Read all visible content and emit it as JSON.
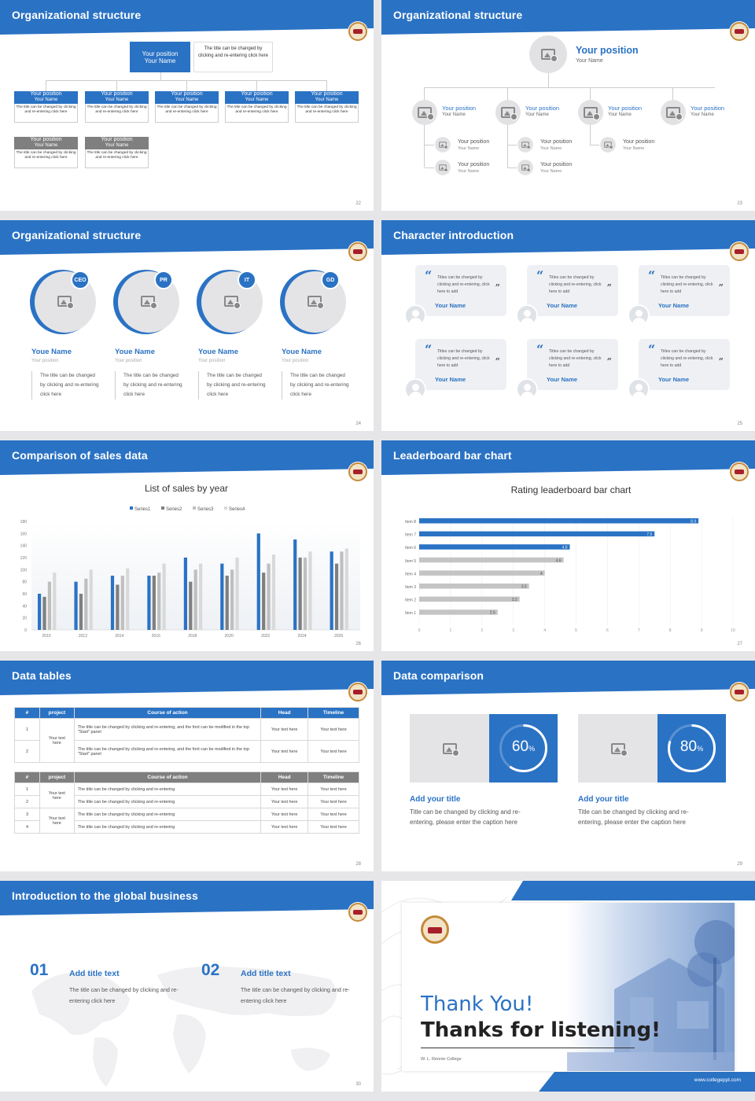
{
  "slides": {
    "s22": {
      "title": "Organizational structure",
      "page": "22",
      "top_box": {
        "position": "Your position",
        "name": "Your Name",
        "note": "The title can be changed by clicking and re-entering click here"
      },
      "row1": [
        {
          "position": "Your position",
          "name": "Your Name",
          "note": "The title can be changed by clicking and re-entering click here"
        },
        {
          "position": "Your position",
          "name": "Your Name",
          "note": "The title can be changed by clicking and re-entering click here"
        },
        {
          "position": "Your position",
          "name": "Your Name",
          "note": "The title can be changed by clicking and re-entering click here"
        },
        {
          "position": "Your position",
          "name": "Your Name",
          "note": "The title can be changed by clicking and re-entering click here"
        },
        {
          "position": "Your position",
          "name": "Your Name",
          "note": "The title can be changed by clicking and re-entering click here"
        }
      ],
      "row2": [
        {
          "position": "Your position",
          "name": "Your Name",
          "note": "The title can be changed by clicking and re-entering click here"
        },
        {
          "position": "Your position",
          "name": "Your Name",
          "note": "The title can be changed by clicking and re-entering click here"
        }
      ]
    },
    "s23": {
      "title": "Organizational structure",
      "page": "23",
      "top": {
        "position": "Your position",
        "name": "Your Name"
      },
      "level2": [
        {
          "position": "Your position",
          "name": "Your Name"
        },
        {
          "position": "Your position",
          "name": "Your Name"
        },
        {
          "position": "Your position",
          "name": "Your Name"
        },
        {
          "position": "Your position",
          "name": "Your Name"
        }
      ],
      "level3": [
        {
          "position": "Your position",
          "name": "Your Name"
        },
        {
          "position": "Your position",
          "name": "Your Name"
        },
        {
          "position": "Your position",
          "name": "Your Name"
        },
        {
          "position": "Your position",
          "name": "Your Name"
        },
        {
          "position": "Your position",
          "name": "Your Name"
        }
      ]
    },
    "s24": {
      "title": "Organizational structure",
      "page": "24",
      "people": [
        {
          "badge": "CEO",
          "name": "Youe Name",
          "position": "Your position",
          "desc": "The title can be changed by clicking and re-entering click here"
        },
        {
          "badge": "PR",
          "name": "Youe Name",
          "position": "Your position",
          "desc": "The title can be changed by clicking and re-entering click here"
        },
        {
          "badge": "IT",
          "name": "Youe Name",
          "position": "Your position",
          "desc": "The title can be changed by clicking and re-entering click here"
        },
        {
          "badge": "GD",
          "name": "Youe Name",
          "position": "Your position",
          "desc": "The title can be changed by clicking and re-entering click here"
        }
      ]
    },
    "s25": {
      "title": "Character introduction",
      "page": "25",
      "quote_text": "Titles can be changed by clicking and re-entering, click here to add",
      "name": "Your Name",
      "open_quote": "“",
      "close_quote": "”"
    },
    "s26": {
      "title": "Comparison of sales data",
      "page": "26",
      "chart_data": {
        "type": "bar",
        "title": "List of sales by year",
        "categories": [
          "2010",
          "2012",
          "2014",
          "2016",
          "2018",
          "2020",
          "2022",
          "2024",
          "2026"
        ],
        "series": [
          {
            "name": "Series1",
            "color": "#2a72c4",
            "values": [
              60,
              80,
              90,
              90,
              120,
              110,
              160,
              150,
              130
            ]
          },
          {
            "name": "Series2",
            "color": "#7f7f7f",
            "values": [
              55,
              60,
              75,
              90,
              80,
              90,
              95,
              120,
              110
            ]
          },
          {
            "name": "Series3",
            "color": "#bfbfbf",
            "values": [
              80,
              85,
              90,
              95,
              100,
              100,
              110,
              120,
              130
            ]
          },
          {
            "name": "Series4",
            "color": "#d9d9d9",
            "values": [
              95,
              100,
              102,
              110,
              110,
              120,
              125,
              130,
              135
            ]
          }
        ],
        "ylim": [
          0,
          180
        ],
        "yticks": [
          "0",
          "20",
          "40",
          "60",
          "80",
          "100",
          "120",
          "140",
          "160",
          "180"
        ],
        "legend": "top"
      }
    },
    "s27": {
      "title": "Leaderboard bar chart",
      "page": "27",
      "chart_data": {
        "type": "bar",
        "orientation": "horizontal",
        "title": "Rating leaderboard bar chart",
        "categories": [
          "Item 8",
          "Item 7",
          "Item 6",
          "Item 5",
          "Item 4",
          "Item 3",
          "Item 2",
          "Item 1"
        ],
        "values": [
          8.9,
          7.5,
          4.8,
          4.6,
          4,
          3.5,
          3.2,
          2.5
        ],
        "value_labels": [
          "8.9",
          "7.5",
          "4.8",
          "4.6",
          "4",
          "3.5",
          "3.2",
          "2.5"
        ],
        "highlight": [
          "Item 8",
          "Item 7",
          "Item 6"
        ],
        "xlim": [
          0,
          10
        ],
        "xticks": [
          "0",
          "1",
          "2",
          "3",
          "4",
          "5",
          "6",
          "7",
          "8",
          "9",
          "10"
        ]
      }
    },
    "s28": {
      "title": "Data tables",
      "page": "28",
      "headers": [
        "#",
        "project",
        "Course of action",
        "Head",
        "Timeline"
      ],
      "table1": {
        "project": "Your text here",
        "rows": [
          {
            "num": "1",
            "action": "The title can be changed by clicking and re-entering, and the font can be modified in the top \"Start\" panel",
            "head": "Your text here",
            "timeline": "Your text here"
          },
          {
            "num": "2",
            "action": "The title can be changed by clicking and re-entering, and the font can be modified in the top \"Start\" panel",
            "head": "Your text here",
            "timeline": "Your text here"
          }
        ]
      },
      "table2": {
        "project_a": "Your text here",
        "project_b": "Your text here",
        "rows": [
          {
            "num": "1",
            "action": "The title can be changed by clicking and re-entering",
            "head": "Your text here",
            "timeline": "Your text here"
          },
          {
            "num": "2",
            "action": "The title can be changed by clicking and re-entering",
            "head": "Your text here",
            "timeline": "Your text here"
          },
          {
            "num": "3",
            "action": "The title can be changed by clicking and re-entering",
            "head": "Your text here",
            "timeline": "Your text here"
          },
          {
            "num": "4",
            "action": "The title can be changed by clicking and re-entering",
            "head": "Your text here",
            "timeline": "Your text here"
          }
        ]
      }
    },
    "s29": {
      "title": "Data comparison",
      "page": "29",
      "items": [
        {
          "percent": 60,
          "percent_label": "60",
          "unit": "%",
          "title": "Add your title",
          "desc": "Title can be changed by clicking and re-entering, please enter the caption here"
        },
        {
          "percent": 80,
          "percent_label": "80",
          "unit": "%",
          "title": "Add your title",
          "desc": "Title can be changed by clicking and re-entering, please enter the caption here"
        }
      ]
    },
    "s30": {
      "title": "Introduction to the global business",
      "page": "30",
      "items": [
        {
          "num": "01",
          "title": "Add title text",
          "desc": "The title can be changed by clicking and re-entering click here"
        },
        {
          "num": "02",
          "title": "Add title text",
          "desc": "The title can be changed by clicking and re-entering click here"
        }
      ]
    },
    "s31": {
      "thanks": "Thank You!",
      "listening": "Thanks for listening!",
      "college": "W. L. Rennie College",
      "url": "www.collegeppt.com"
    }
  },
  "colors": {
    "accent": "#2a72c4",
    "gray": "#7f7f7f",
    "light": "#e6e6e8"
  }
}
